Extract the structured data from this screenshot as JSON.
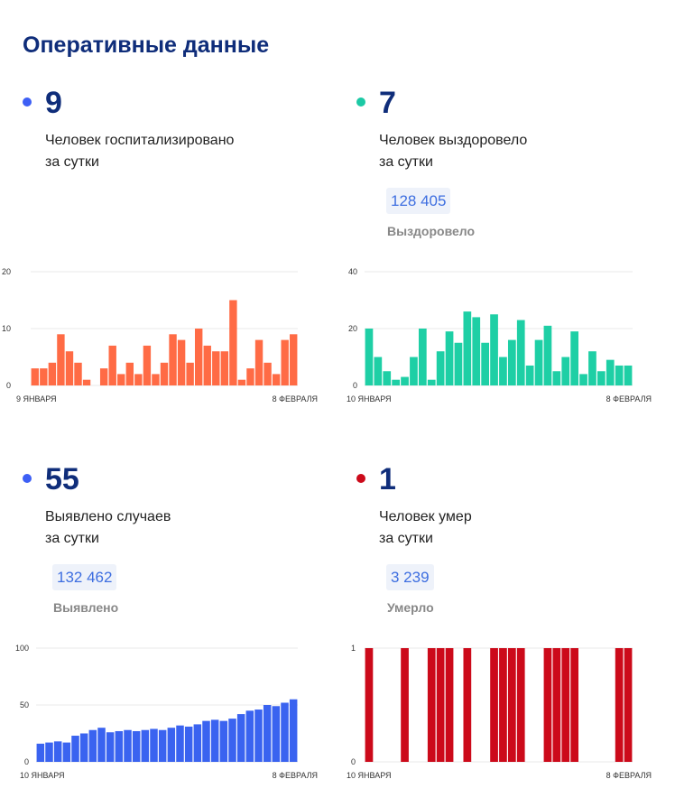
{
  "header": {
    "title": "Оперативные данные"
  },
  "panels": [
    {
      "id": "hospitalized",
      "dot_color": "#3d5ff5",
      "number": "9",
      "description": "Человек госпитализировано\nза сутки",
      "chart_data": {
        "type": "bar",
        "color": "#ff6b45",
        "x_start_label": "9 ЯНВАРЯ",
        "x_end_label": "8 ФЕВРАЛЯ",
        "y_ticks": [
          0,
          10,
          20
        ],
        "ylim": [
          0,
          20
        ],
        "grid": true,
        "values": [
          3,
          3,
          4,
          9,
          6,
          4,
          1,
          0,
          3,
          7,
          2,
          4,
          2,
          7,
          2,
          4,
          9,
          8,
          4,
          10,
          7,
          6,
          6,
          15,
          1,
          3,
          8,
          4,
          2,
          8,
          9
        ]
      }
    },
    {
      "id": "recovered",
      "dot_color": "#1cc9a5",
      "number": "7",
      "description": "Человек выздоровело\nза сутки",
      "badge_value": "128 405",
      "badge_label": "Выздоровело",
      "chart_data": {
        "type": "bar",
        "color": "#1ecfa5",
        "x_start_label": "10 ЯНВАРЯ",
        "x_end_label": "8 ФЕВРАЛЯ",
        "y_ticks": [
          0,
          20,
          40
        ],
        "ylim": [
          0,
          40
        ],
        "grid": true,
        "values": [
          20,
          10,
          5,
          2,
          3,
          10,
          20,
          2,
          12,
          19,
          15,
          26,
          24,
          15,
          25,
          10,
          16,
          23,
          7,
          16,
          21,
          5,
          10,
          19,
          4,
          12,
          5,
          9,
          7,
          7
        ]
      }
    },
    {
      "id": "cases",
      "dot_color": "#3d5ff5",
      "number": "55",
      "description": "Выявлено случаев\nза сутки",
      "badge_value": "132 462",
      "badge_label": "Выявлено",
      "chart_data": {
        "type": "bar",
        "color": "#3a63f0",
        "x_start_label": "10 ЯНВАРЯ",
        "x_end_label": "8 ФЕВРАЛЯ",
        "y_ticks": [
          0,
          50,
          100
        ],
        "ylim": [
          0,
          100
        ],
        "grid": true,
        "values": [
          16,
          17,
          18,
          17,
          23,
          25,
          28,
          30,
          26,
          27,
          28,
          27,
          28,
          29,
          28,
          30,
          32,
          31,
          33,
          36,
          37,
          36,
          38,
          42,
          45,
          46,
          50,
          49,
          52,
          55
        ]
      }
    },
    {
      "id": "deaths",
      "dot_color": "#cc0a1a",
      "number": "1",
      "description": "Человек умер\nза сутки",
      "badge_value": "3 239",
      "badge_label": "Умерло",
      "chart_data": {
        "type": "bar",
        "color": "#cc0a1a",
        "x_start_label": "10 ЯНВАРЯ",
        "x_end_label": "8 ФЕВРАЛЯ",
        "y_ticks": [
          0,
          1
        ],
        "ylim": [
          0,
          1
        ],
        "grid": true,
        "values": [
          1,
          0,
          0,
          0,
          1,
          0,
          0,
          1,
          1,
          1,
          0,
          1,
          0,
          0,
          1,
          1,
          1,
          1,
          0,
          0,
          1,
          1,
          1,
          1,
          0,
          0,
          0,
          0,
          1,
          1
        ]
      }
    }
  ]
}
